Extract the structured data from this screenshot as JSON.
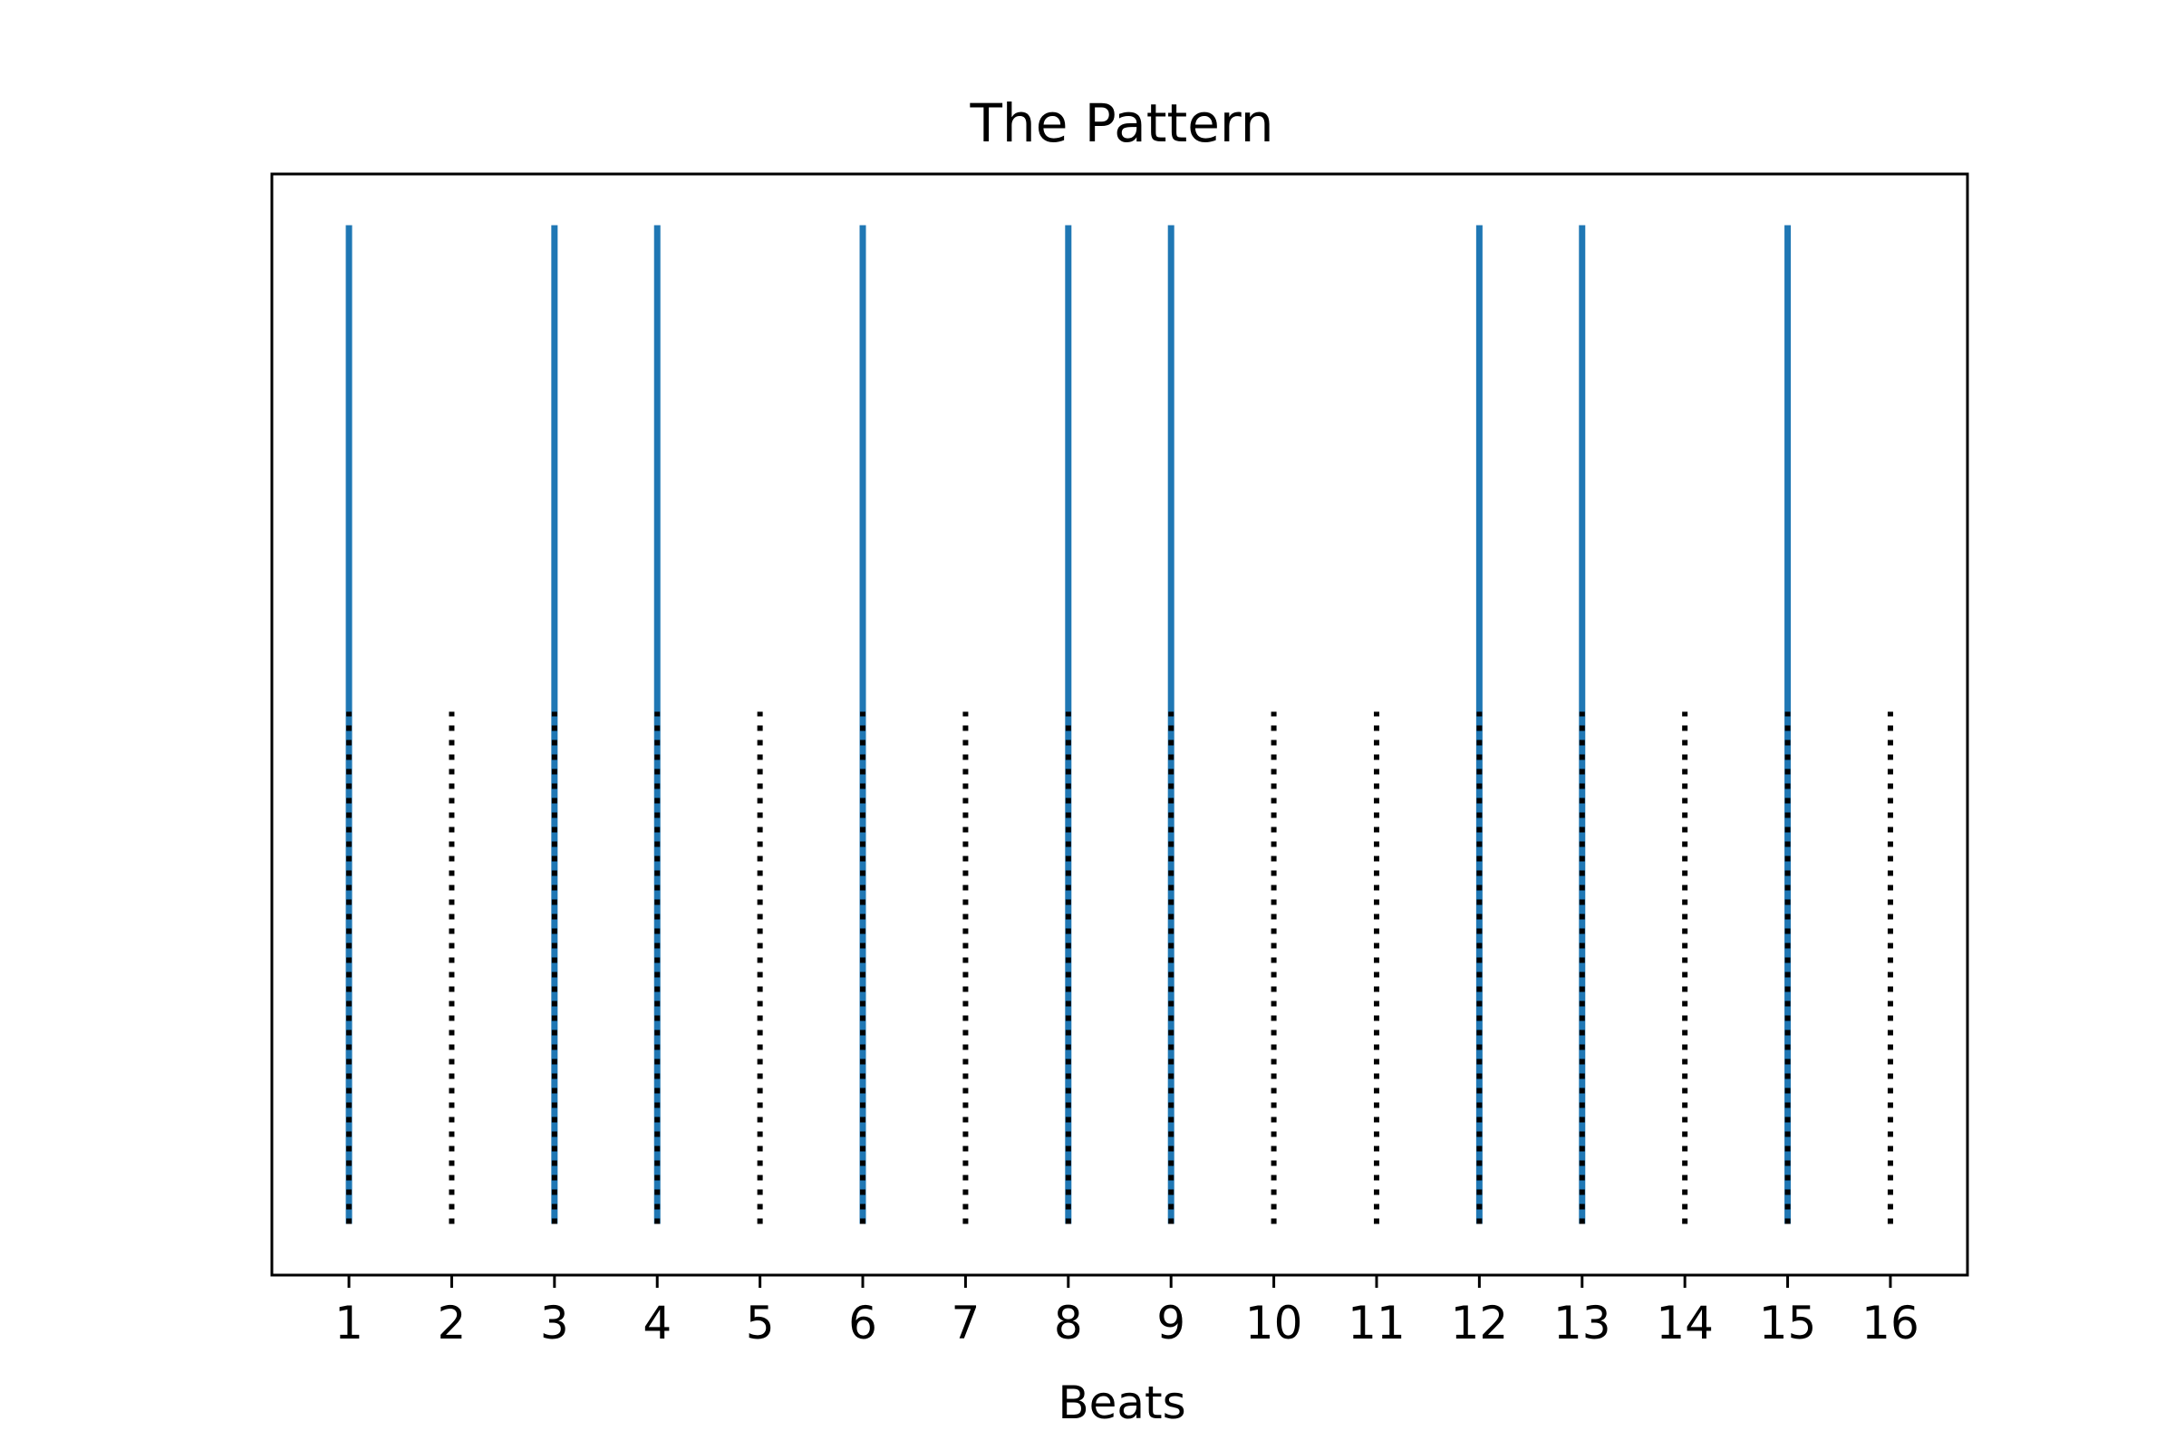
{
  "chart_data": {
    "type": "event-lines",
    "title": "The Pattern",
    "xlabel": "Beats",
    "ylabel": "",
    "x_ticks": [
      1,
      2,
      3,
      4,
      5,
      6,
      7,
      8,
      9,
      10,
      11,
      12,
      13,
      14,
      15,
      16
    ],
    "xlim": [
      0.25,
      16.75
    ],
    "ylim": [
      0,
      1.075
    ],
    "grid": false,
    "y_axis_visible": false,
    "series": [
      {
        "style": "solid",
        "color": "#1f77b4",
        "x": [
          1,
          3,
          4,
          6,
          8,
          9,
          12,
          13,
          15
        ],
        "y_range": [
          0.05,
          1.025
        ]
      },
      {
        "style": "dotted",
        "color": "#000000",
        "x": [
          1,
          2,
          3,
          4,
          5,
          6,
          7,
          8,
          9,
          10,
          11,
          12,
          13,
          14,
          15,
          16
        ],
        "y_range": [
          0.05,
          0.55
        ]
      }
    ]
  }
}
